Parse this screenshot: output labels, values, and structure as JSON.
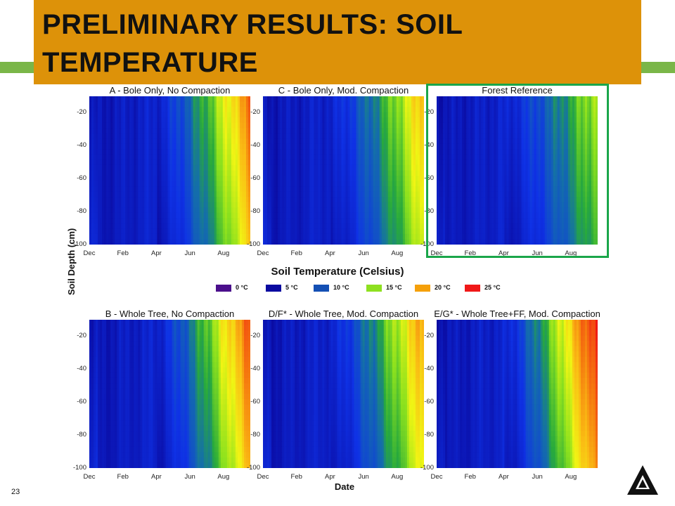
{
  "slide": {
    "title": "PRELIMINARY RESULTS: SOIL TEMPERATURE",
    "page_number": "23",
    "accent_color": "#dd9209",
    "bar_color": "#7ab648",
    "highlight_color": "#1aa64a",
    "logo_icon": "triangle-arrow-logo-icon"
  },
  "chart_data": {
    "type": "heatmap",
    "xlabel": "Date",
    "ylabel": "Soil Depth (cm)",
    "x_ticks": [
      "Dec",
      "Feb",
      "Apr",
      "Jun",
      "Aug"
    ],
    "y_ticks": [
      -20,
      -40,
      -60,
      -80,
      -100
    ],
    "ylim": [
      -100,
      -10
    ],
    "legend": {
      "title": "Soil Temperature (Celsius)",
      "placement": "center",
      "entries": [
        {
          "label": "0 °C",
          "color": "#4b0f8c"
        },
        {
          "label": "5 °C",
          "color": "#0a0aa0"
        },
        {
          "label": "10 °C",
          "color": "#1450b4"
        },
        {
          "label": "15 °C",
          "color": "#8ee020"
        },
        {
          "label": "20 °C",
          "color": "#f5a00a"
        },
        {
          "label": "25 °C",
          "color": "#f01818"
        }
      ]
    },
    "panels": [
      {
        "title": "A - Bole Only, No Compaction",
        "highlighted": false,
        "peak_temperature_c": 21
      },
      {
        "title": "C - Bole Only, Mod. Compaction",
        "highlighted": false,
        "peak_temperature_c": 19
      },
      {
        "title": "Forest Reference",
        "highlighted": true,
        "peak_temperature_c": 16
      },
      {
        "title": "B - Whole Tree, No Compaction",
        "highlighted": false,
        "peak_temperature_c": 22
      },
      {
        "title": "D/F* - Whole Tree, Mod. Compaction",
        "highlighted": false,
        "peak_temperature_c": 20
      },
      {
        "title": "E/G* - Whole Tree+FF, Mod. Compaction",
        "highlighted": false,
        "peak_temperature_c": 24
      }
    ]
  }
}
